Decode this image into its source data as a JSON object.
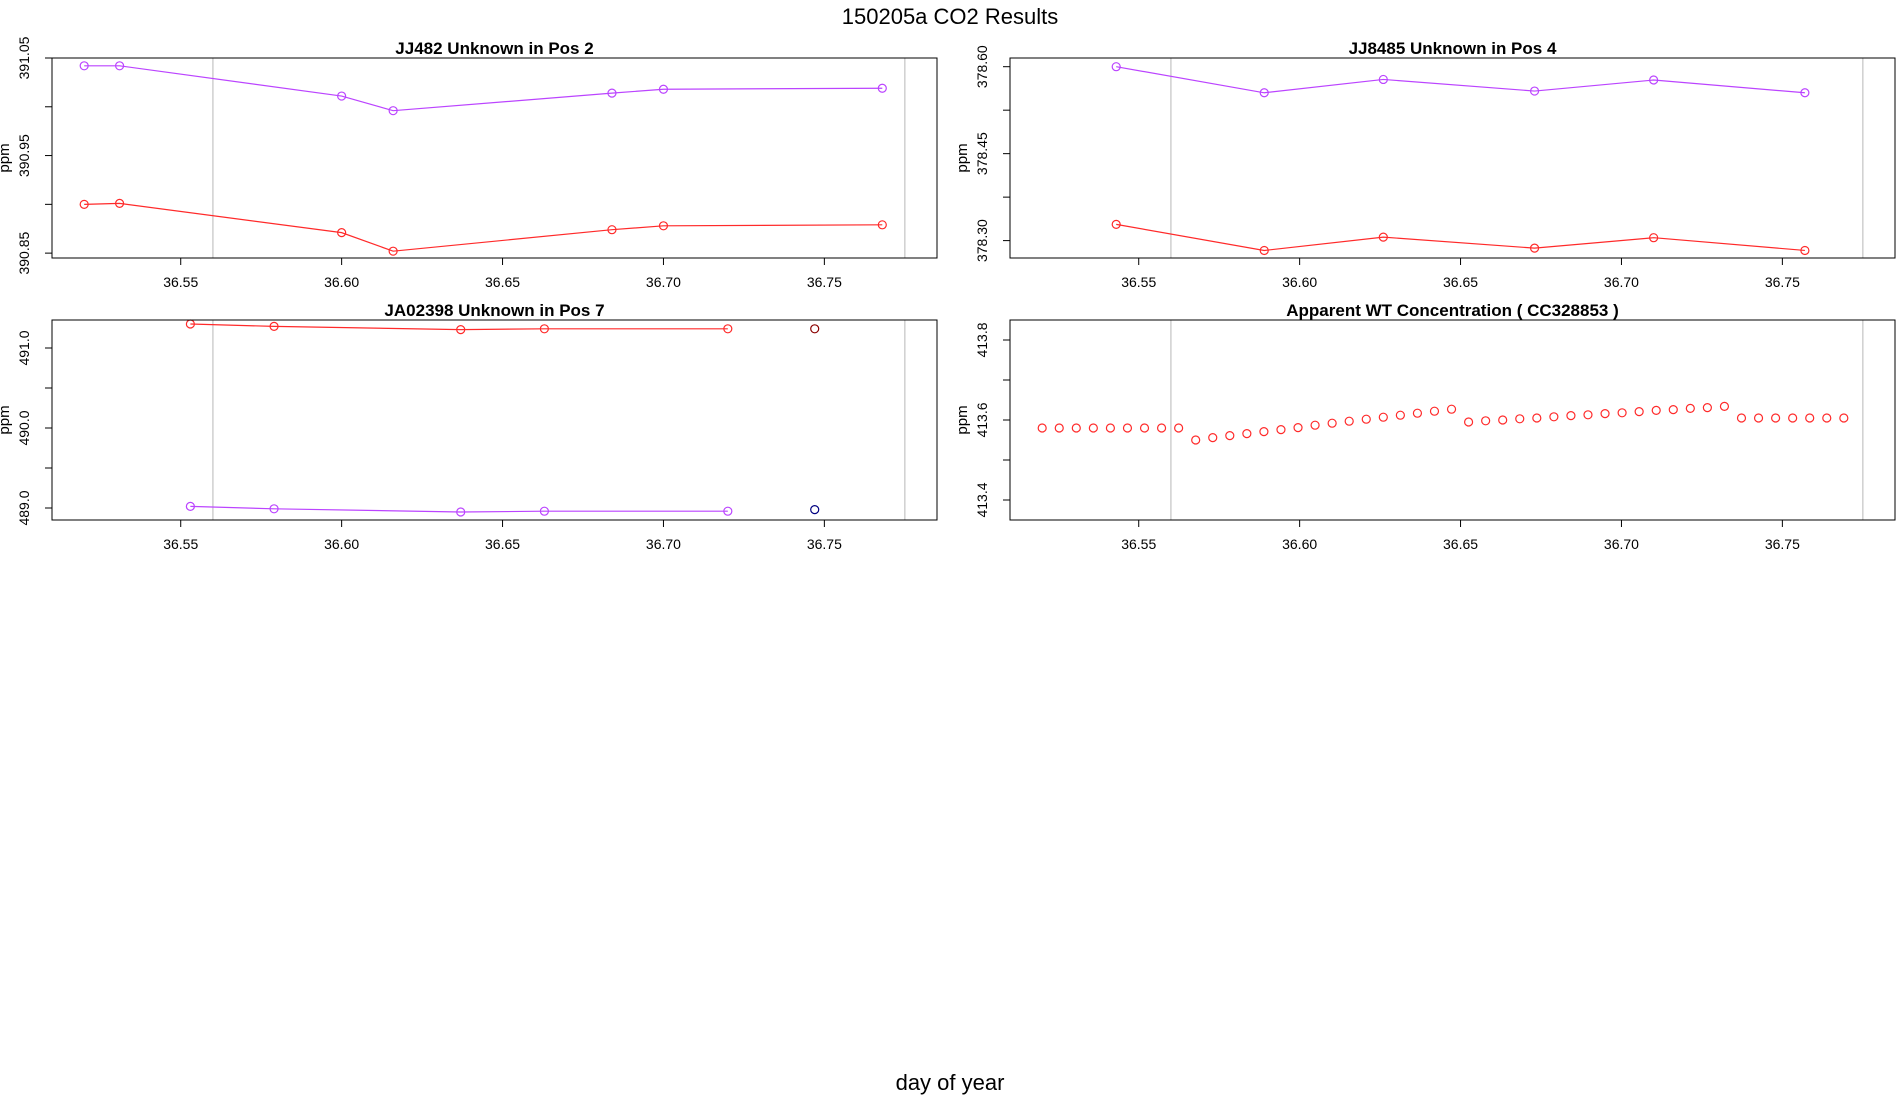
{
  "figure": {
    "title": "150205a  CO2 Results",
    "xlabel": "day of year"
  },
  "chart_data": [
    {
      "type": "line",
      "title": "JJ482    Unknown in Pos 2",
      "ylabel": "ppm",
      "xlim": [
        36.51,
        36.785
      ],
      "ylim": [
        390.845,
        391.05
      ],
      "xticks": [
        36.55,
        36.6,
        36.65,
        36.7,
        36.75
      ],
      "xtick_labels": [
        "36.55",
        "36.60",
        "36.65",
        "36.70",
        "36.75"
      ],
      "yticks": [
        390.85,
        390.95,
        391.05
      ],
      "ytick_labels": [
        "390.85",
        "390.95",
        "391.05"
      ],
      "vlines": [
        36.56,
        36.775
      ],
      "series": [
        {
          "name": "upper",
          "color": "#bb44ff",
          "x": [
            36.52,
            36.531,
            36.6,
            36.616,
            36.684,
            36.7,
            36.768
          ],
          "y": [
            391.042,
            391.042,
            391.011,
            390.996,
            391.014,
            391.018,
            391.019
          ]
        },
        {
          "name": "lower",
          "color": "#ff2a2a",
          "x": [
            36.52,
            36.531,
            36.6,
            36.616,
            36.684,
            36.7,
            36.768
          ],
          "y": [
            390.9,
            390.901,
            390.871,
            390.852,
            390.874,
            390.878,
            390.879
          ]
        }
      ]
    },
    {
      "type": "line",
      "title": "JJ8485    Unknown in Pos 4",
      "ylabel": "ppm",
      "xlim": [
        36.51,
        36.785
      ],
      "ylim": [
        378.27,
        378.615
      ],
      "xticks": [
        36.55,
        36.6,
        36.65,
        36.7,
        36.75
      ],
      "xtick_labels": [
        "36.55",
        "36.60",
        "36.65",
        "36.70",
        "36.75"
      ],
      "yticks": [
        378.3,
        378.45,
        378.6
      ],
      "ytick_labels": [
        "378.30",
        "378.45",
        "378.60"
      ],
      "vlines": [
        36.56,
        36.775
      ],
      "series": [
        {
          "name": "upper",
          "color": "#bb44ff",
          "x": [
            36.543,
            36.589,
            36.626,
            36.673,
            36.71,
            36.757
          ],
          "y": [
            378.6,
            378.555,
            378.578,
            378.558,
            378.577,
            378.555
          ]
        },
        {
          "name": "lower",
          "color": "#ff2a2a",
          "x": [
            36.543,
            36.589,
            36.626,
            36.673,
            36.71,
            36.757
          ],
          "y": [
            378.328,
            378.283,
            378.306,
            378.287,
            378.305,
            378.283
          ]
        }
      ]
    },
    {
      "type": "line",
      "title": "JA02398    Unknown in Pos 7",
      "ylabel": "ppm",
      "xlim": [
        36.51,
        36.785
      ],
      "ylim": [
        488.85,
        491.35
      ],
      "xticks": [
        36.55,
        36.6,
        36.65,
        36.7,
        36.75
      ],
      "xtick_labels": [
        "36.55",
        "36.60",
        "36.65",
        "36.70",
        "36.75"
      ],
      "yticks": [
        489.0,
        490.0,
        491.0
      ],
      "ytick_labels": [
        "489.0",
        "490.0",
        "491.0"
      ],
      "vlines": [
        36.56,
        36.775
      ],
      "series": [
        {
          "name": "upper",
          "color": "#ff2a2a",
          "x": [
            36.553,
            36.579,
            36.637,
            36.663,
            36.72
          ],
          "y": [
            491.3,
            491.27,
            491.23,
            491.24,
            491.24
          ]
        },
        {
          "name": "lower",
          "color": "#bb44ff",
          "x": [
            36.553,
            36.579,
            36.637,
            36.663,
            36.72
          ],
          "y": [
            489.02,
            488.99,
            488.95,
            488.96,
            488.96
          ]
        }
      ],
      "points": [
        {
          "x": 36.747,
          "y": 491.24,
          "color": "#8b0000"
        },
        {
          "x": 36.747,
          "y": 488.98,
          "color": "#000080"
        }
      ]
    },
    {
      "type": "scatter",
      "title": "Apparent WT Concentration ( CC328853 )",
      "ylabel": "ppm",
      "xlim": [
        36.51,
        36.785
      ],
      "ylim": [
        413.35,
        413.85
      ],
      "xticks": [
        36.55,
        36.6,
        36.65,
        36.7,
        36.75
      ],
      "xtick_labels": [
        "36.55",
        "36.60",
        "36.65",
        "36.70",
        "36.75"
      ],
      "yticks": [
        413.4,
        413.6,
        413.8
      ],
      "ytick_labels": [
        "413.4",
        "413.6",
        "413.8"
      ],
      "vlines": [
        36.56,
        36.775
      ],
      "series": [
        {
          "name": "wt",
          "color": "#ff2a2a",
          "x": [
            36.52,
            36.5253,
            36.5306,
            36.5359,
            36.5412,
            36.5465,
            36.5518,
            36.5571,
            36.5624,
            36.5677,
            36.573,
            36.5783,
            36.5836,
            36.5889,
            36.5942,
            36.5995,
            36.6048,
            36.6101,
            36.6154,
            36.6207,
            36.626,
            36.6313,
            36.6366,
            36.6419,
            36.6472,
            36.6525,
            36.6578,
            36.6631,
            36.6684,
            36.6737,
            36.679,
            36.6843,
            36.6896,
            36.6949,
            36.7002,
            36.7055,
            36.7108,
            36.7161,
            36.7214,
            36.7267,
            36.732,
            36.7373,
            36.7426,
            36.7479,
            36.7532,
            36.7585,
            36.7638,
            36.7691
          ],
          "y": [
            413.58,
            413.58,
            413.58,
            413.58,
            413.58,
            413.58,
            413.58,
            413.58,
            413.58,
            413.55,
            413.556,
            413.561,
            413.566,
            413.571,
            413.576,
            413.581,
            413.587,
            413.592,
            413.597,
            413.602,
            413.607,
            413.612,
            413.617,
            413.622,
            413.627,
            413.595,
            413.598,
            413.6,
            413.603,
            413.605,
            413.608,
            413.611,
            413.613,
            413.616,
            413.618,
            413.621,
            413.624,
            413.626,
            413.629,
            413.631,
            413.634,
            413.605,
            413.605,
            413.605,
            413.605,
            413.605,
            413.605,
            413.605
          ]
        }
      ]
    }
  ]
}
